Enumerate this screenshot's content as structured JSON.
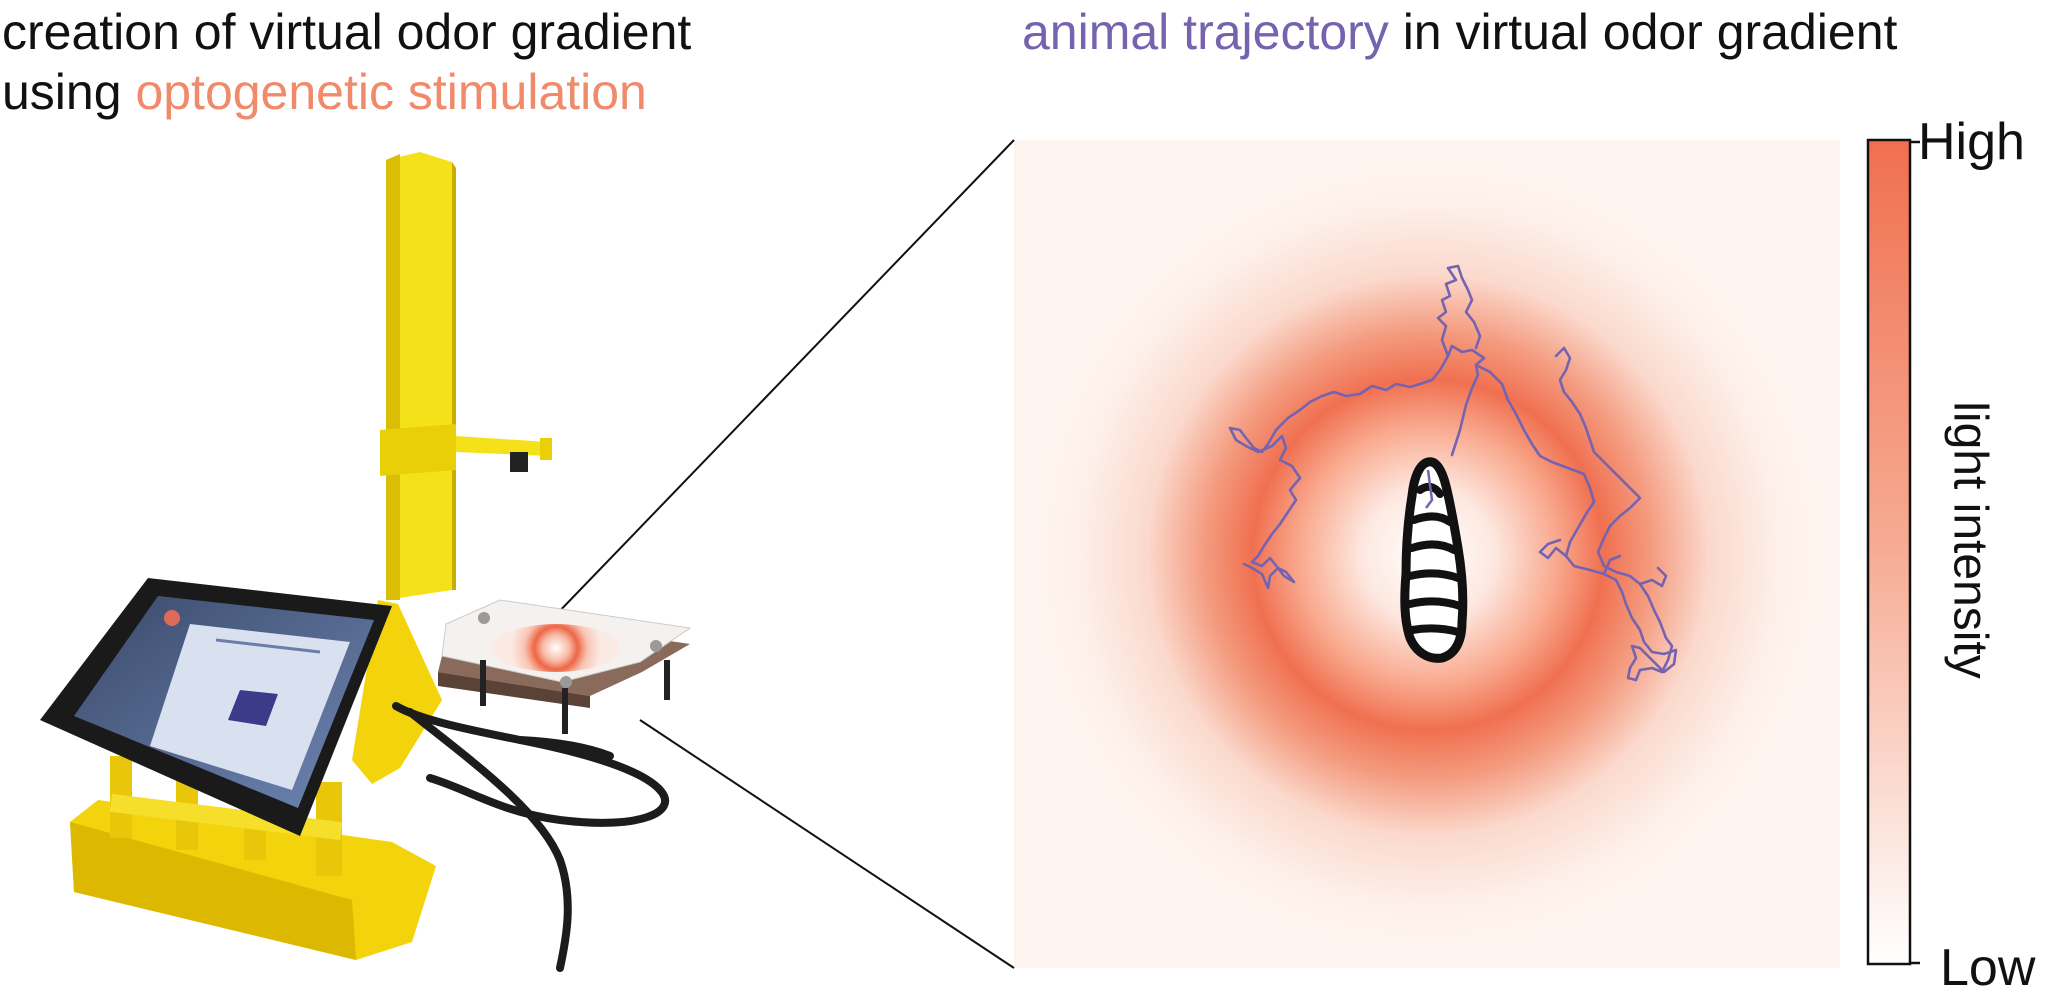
{
  "left_title": {
    "line1": "creation of virtual odor gradient",
    "line2_prefix": "using ",
    "line2_accent": "optogenetic stimulation"
  },
  "right_title": {
    "accent": "animal trajectory",
    "rest": " in virtual odor gradient"
  },
  "colorbar": {
    "high_label": "High",
    "low_label": "Low",
    "title": "light intensity"
  },
  "colors": {
    "optogenetic_accent": "#f08a6a",
    "trajectory": "#7563b0",
    "gradient_peak": "#f07050",
    "device_yellow": "#f5e11a"
  }
}
